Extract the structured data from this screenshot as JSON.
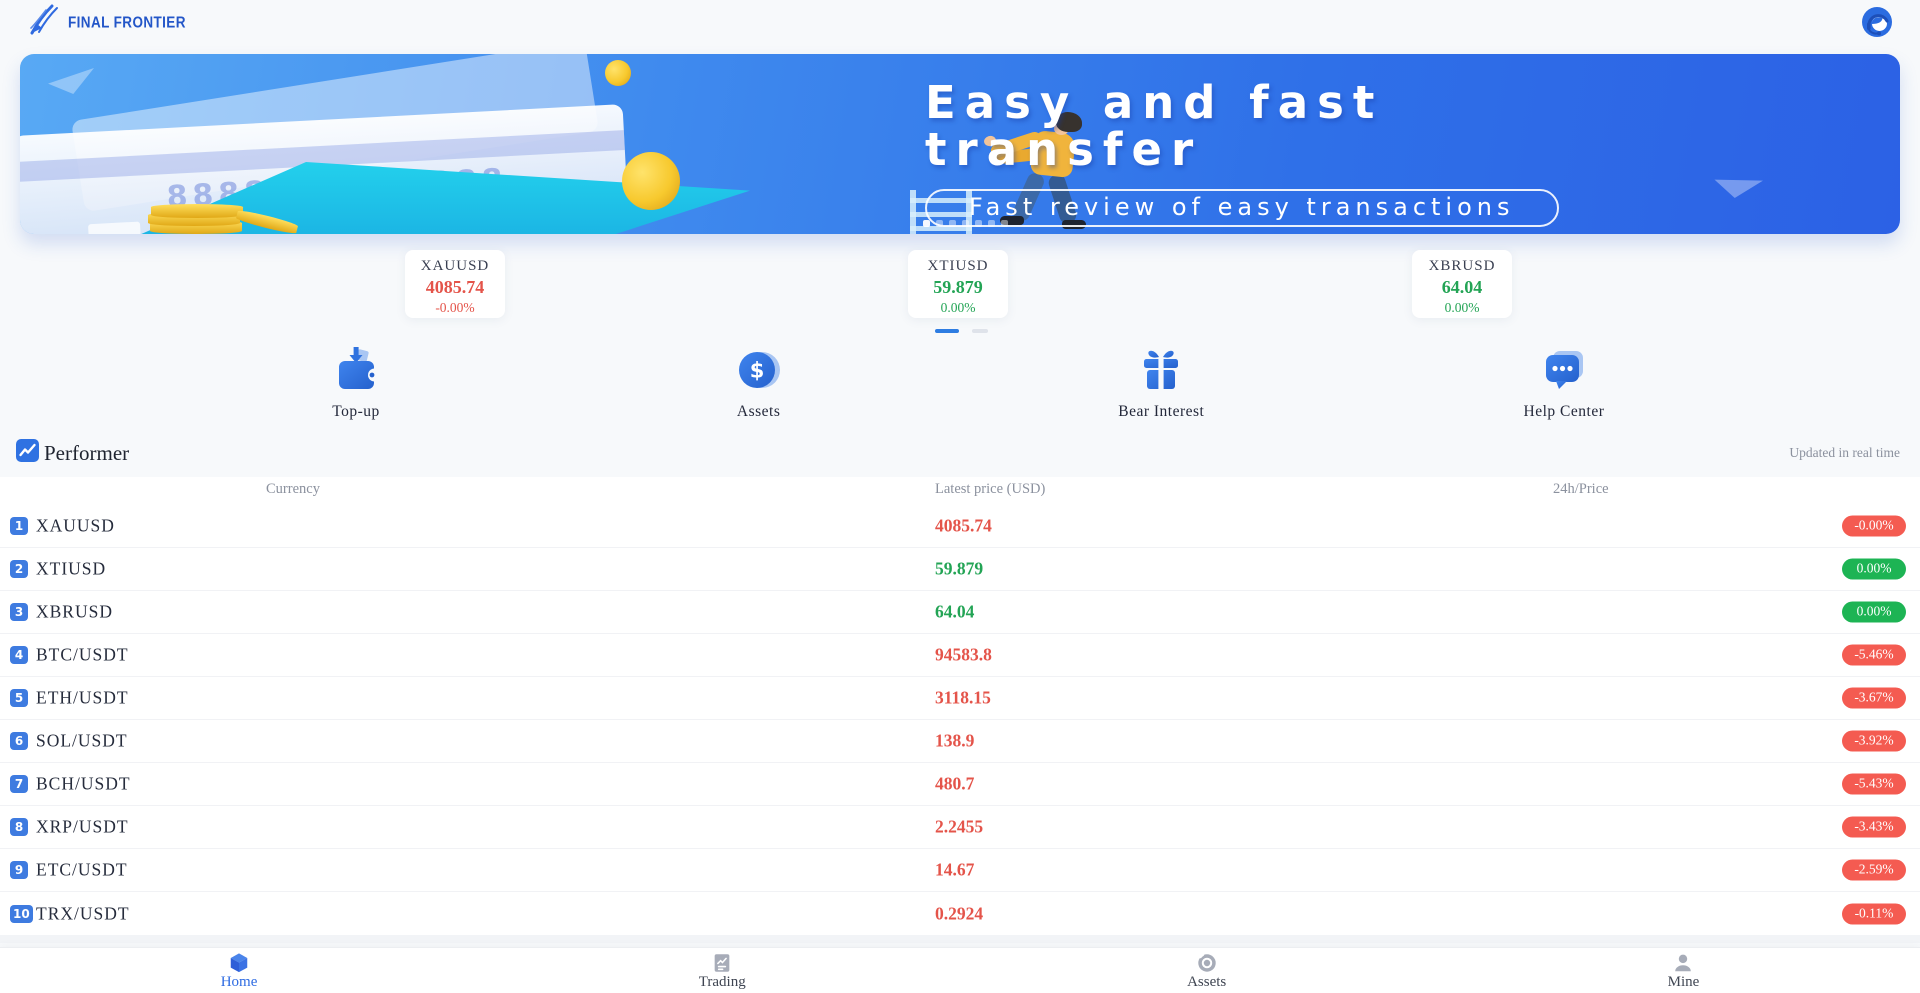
{
  "colors": {
    "accent": "#2e6fe0",
    "up": "#23a455",
    "down": "#e4544a",
    "pill_up": "#1db454",
    "pill_down": "#f45b51"
  },
  "header": {
    "brand": "FINAL FRONTIER"
  },
  "banner": {
    "title_line1": "Easy and fast",
    "title_line2": "transfer",
    "subtitle": "Fast review of easy transactions",
    "card_number": "8888 8888 8888",
    "dot_count": 7,
    "active_dot": 0
  },
  "tickers": [
    {
      "symbol": "XAUUSD",
      "price": "4085.74",
      "change": "-0.00%",
      "direction": "down"
    },
    {
      "symbol": "XTIUSD",
      "price": "59.879",
      "change": "0.00%",
      "direction": "up"
    },
    {
      "symbol": "XBRUSD",
      "price": "64.04",
      "change": "0.00%",
      "direction": "up"
    }
  ],
  "ticker_pager": {
    "count": 2,
    "active": 0
  },
  "quick_actions": [
    {
      "label": "Top-up",
      "icon": "wallet-topup-icon"
    },
    {
      "label": "Assets",
      "icon": "dollar-coin-icon"
    },
    {
      "label": "Bear Interest",
      "icon": "gift-icon"
    },
    {
      "label": "Help Center",
      "icon": "chat-bubble-icon"
    }
  ],
  "performer": {
    "title": "Performer",
    "updated_note": "Updated in real time"
  },
  "table": {
    "columns": [
      "Currency",
      "Latest price (USD)",
      "24h/Price"
    ],
    "rows": [
      {
        "rank": "1",
        "pair": "XAUUSD",
        "price": "4085.74",
        "change": "-0.00%",
        "direction": "down"
      },
      {
        "rank": "2",
        "pair": "XTIUSD",
        "price": "59.879",
        "change": "0.00%",
        "direction": "up"
      },
      {
        "rank": "3",
        "pair": "XBRUSD",
        "price": "64.04",
        "change": "0.00%",
        "direction": "up"
      },
      {
        "rank": "4",
        "pair": "BTC/USDT",
        "price": "94583.8",
        "change": "-5.46%",
        "direction": "down"
      },
      {
        "rank": "5",
        "pair": "ETH/USDT",
        "price": "3118.15",
        "change": "-3.67%",
        "direction": "down"
      },
      {
        "rank": "6",
        "pair": "SOL/USDT",
        "price": "138.9",
        "change": "-3.92%",
        "direction": "down"
      },
      {
        "rank": "7",
        "pair": "BCH/USDT",
        "price": "480.7",
        "change": "-5.43%",
        "direction": "down"
      },
      {
        "rank": "8",
        "pair": "XRP/USDT",
        "price": "2.2455",
        "change": "-3.43%",
        "direction": "down"
      },
      {
        "rank": "9",
        "pair": "ETC/USDT",
        "price": "14.67",
        "change": "-2.59%",
        "direction": "down"
      },
      {
        "rank": "10",
        "pair": "TRX/USDT",
        "price": "0.2924",
        "change": "-0.11%",
        "direction": "down"
      }
    ]
  },
  "bottom_nav": [
    {
      "label": "Home",
      "icon": "home-cube-icon",
      "active": true
    },
    {
      "label": "Trading",
      "icon": "trading-icon",
      "active": false
    },
    {
      "label": "Assets",
      "icon": "assets-coin-icon",
      "active": false
    },
    {
      "label": "Mine",
      "icon": "mine-user-icon",
      "active": false
    }
  ]
}
